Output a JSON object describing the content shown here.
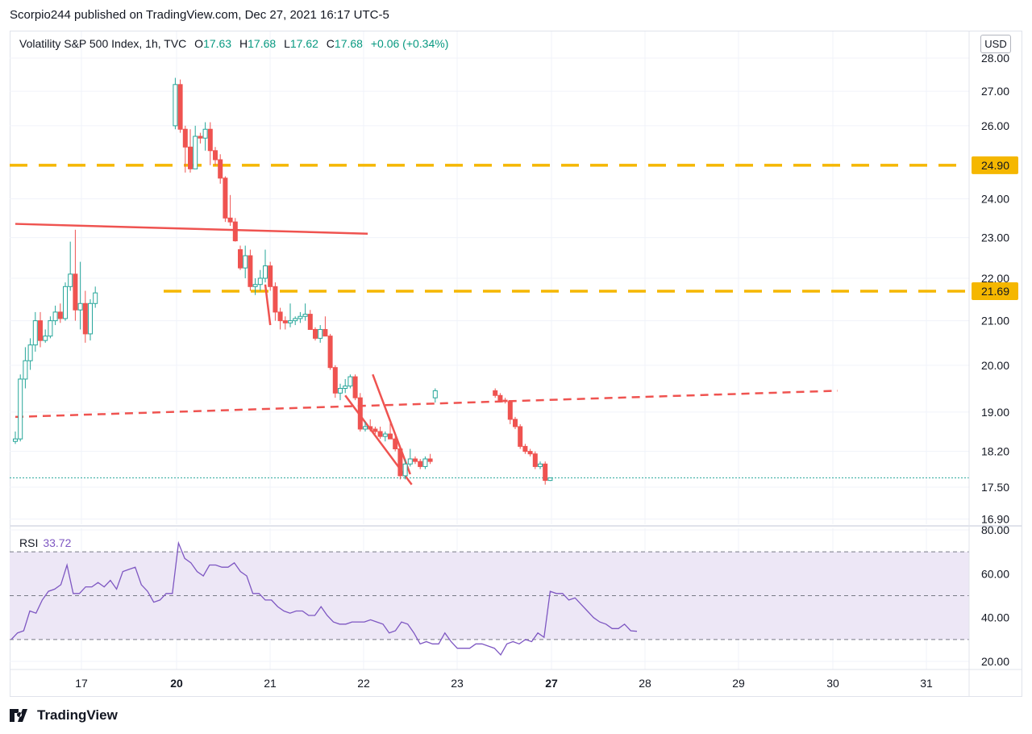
{
  "header": {
    "published": "Scorpio244 published on TradingView.com, Dec 27, 2021 16:17 UTC-5"
  },
  "legend": {
    "title": "Volatility S&P 500 Index, 1h, TVC",
    "o_label": "O",
    "o_value": "17.63",
    "h_label": "H",
    "h_value": "17.68",
    "l_label": "L",
    "l_value": "17.62",
    "c_label": "C",
    "c_value": "17.68",
    "change": "+0.06 (+0.34%)"
  },
  "currency_button": "USD",
  "rsi_label": {
    "name": "RSI",
    "value": "33.72"
  },
  "logo_text": "TradingView",
  "colors": {
    "up": "#26a69a",
    "down": "#ef5350",
    "level": "#f5b700",
    "rsi": "#7e57c2",
    "rsi_band": "#ede7f6",
    "grid": "#f0f3fa",
    "last_price": "#26a69a"
  },
  "chart_data": [
    {
      "type": "candlestick",
      "title": "Volatility S&P 500 Index, 1h, TVC",
      "price_axis_ticks": [
        "28.00",
        "27.00",
        "26.00",
        "24.00",
        "23.00",
        "22.00",
        "21.00",
        "20.00",
        "19.00",
        "18.20",
        "17.50",
        "16.90"
      ],
      "log_scale": true,
      "time_axis_ticks": [
        "17",
        "20",
        "21",
        "22",
        "23",
        "27",
        "28",
        "29",
        "30",
        "31"
      ],
      "bold_time_ticks": [
        "20",
        "27"
      ],
      "grid": true,
      "level_labels": [
        {
          "value": 24.9,
          "label": "24.90"
        },
        {
          "value": 21.69,
          "label": "21.69"
        }
      ],
      "last_price": 17.68,
      "trendlines": [
        {
          "style": "solid",
          "points": [
            [
              0.0,
              23.35
            ],
            [
              70.5,
              23.1
            ]
          ]
        },
        {
          "style": "dashed",
          "points": [
            [
              0.0,
              18.9
            ],
            [
              164.5,
              19.45
            ]
          ]
        },
        {
          "style": "solid",
          "points": [
            [
              50.0,
              21.85
            ],
            [
              51.0,
              20.9
            ]
          ]
        },
        {
          "style": "solid",
          "points": [
            [
              66.0,
              19.35
            ],
            [
              79.3,
              17.55
            ]
          ]
        },
        {
          "style": "solid",
          "points": [
            [
              71.5,
              19.8
            ],
            [
              79.0,
              17.75
            ]
          ]
        }
      ],
      "candles": [
        [
          18.4,
          18.6,
          18.35,
          18.45
        ],
        [
          18.45,
          19.8,
          18.4,
          19.7
        ],
        [
          19.7,
          20.4,
          19.5,
          20.1
        ],
        [
          20.1,
          20.6,
          19.9,
          20.45
        ],
        [
          20.45,
          21.2,
          20.3,
          21.0
        ],
        [
          21.0,
          21.2,
          20.4,
          20.55
        ],
        [
          20.55,
          20.8,
          20.5,
          20.65
        ],
        [
          20.65,
          21.1,
          20.6,
          21.0
        ],
        [
          21.0,
          21.35,
          20.9,
          21.2
        ],
        [
          21.2,
          21.4,
          20.95,
          21.05
        ],
        [
          21.05,
          21.9,
          21.0,
          21.8
        ],
        [
          21.8,
          22.9,
          21.7,
          22.1
        ],
        [
          22.1,
          23.2,
          21.0,
          21.25
        ],
        [
          21.25,
          22.4,
          20.8,
          21.4
        ],
        [
          21.4,
          21.7,
          20.5,
          20.7
        ],
        [
          20.7,
          21.5,
          20.55,
          21.4
        ],
        [
          21.4,
          21.8,
          21.3,
          21.65
        ],
        [
          26.0,
          27.4,
          25.9,
          27.2
        ],
        [
          27.2,
          27.35,
          25.8,
          25.9
        ],
        [
          25.9,
          26.0,
          24.7,
          25.4
        ],
        [
          25.4,
          25.9,
          24.7,
          24.8
        ],
        [
          24.8,
          26.0,
          24.8,
          25.7
        ],
        [
          25.7,
          25.8,
          25.5,
          25.65
        ],
        [
          25.65,
          26.1,
          25.3,
          25.9
        ],
        [
          25.9,
          26.1,
          24.9,
          25.3
        ],
        [
          25.3,
          25.4,
          24.9,
          25.05
        ],
        [
          25.05,
          25.2,
          24.4,
          24.55
        ],
        [
          24.55,
          24.6,
          23.4,
          23.5
        ],
        [
          23.5,
          24.1,
          23.3,
          23.4
        ],
        [
          23.4,
          23.5,
          22.9,
          22.92
        ],
        [
          22.7,
          22.8,
          22.2,
          22.25
        ],
        [
          22.25,
          22.8,
          22.0,
          22.55
        ],
        [
          22.55,
          22.7,
          21.7,
          21.8
        ],
        [
          21.8,
          22.0,
          21.6,
          21.85
        ],
        [
          21.85,
          22.2,
          21.7,
          22.0
        ],
        [
          22.0,
          22.7,
          21.9,
          22.3
        ],
        [
          22.3,
          22.4,
          21.7,
          21.8
        ],
        [
          21.8,
          21.9,
          21.0,
          21.2
        ],
        [
          21.2,
          21.3,
          20.8,
          21.0
        ],
        [
          21.0,
          21.1,
          20.8,
          20.95
        ],
        [
          20.95,
          21.4,
          20.85,
          21.0
        ],
        [
          21.0,
          21.1,
          20.9,
          21.05
        ],
        [
          21.05,
          21.2,
          20.95,
          21.1
        ],
        [
          21.1,
          21.4,
          21.0,
          21.15
        ],
        [
          21.15,
          21.25,
          20.8,
          20.8
        ],
        [
          20.8,
          20.85,
          20.55,
          20.6
        ],
        [
          20.6,
          20.9,
          20.5,
          20.8
        ],
        [
          20.8,
          21.1,
          20.7,
          20.65
        ],
        [
          20.65,
          20.7,
          19.9,
          19.95
        ],
        [
          19.95,
          20.0,
          19.3,
          19.4
        ],
        [
          19.4,
          19.6,
          19.25,
          19.5
        ],
        [
          19.5,
          19.7,
          19.4,
          19.55
        ],
        [
          19.55,
          19.8,
          19.5,
          19.75
        ],
        [
          19.75,
          19.8,
          19.25,
          19.3
        ],
        [
          19.3,
          19.4,
          18.6,
          18.65
        ],
        [
          18.65,
          18.8,
          18.6,
          18.7
        ],
        [
          18.7,
          18.85,
          18.6,
          18.65
        ],
        [
          18.65,
          18.7,
          18.55,
          18.6
        ],
        [
          18.6,
          18.7,
          18.45,
          18.5
        ],
        [
          18.5,
          18.6,
          18.4,
          18.55
        ],
        [
          18.55,
          18.8,
          18.5,
          18.45
        ],
        [
          18.45,
          18.5,
          18.2,
          18.25
        ],
        [
          18.25,
          18.3,
          17.65,
          17.72
        ],
        [
          17.72,
          18.05,
          17.65,
          17.95
        ],
        [
          17.95,
          18.25,
          17.9,
          18.05
        ],
        [
          18.05,
          18.1,
          17.95,
          18.0
        ],
        [
          18.0,
          18.05,
          17.85,
          17.9
        ],
        [
          17.9,
          18.1,
          17.85,
          18.05
        ],
        [
          18.05,
          18.15,
          17.95,
          18.0
        ],
        [
          19.3,
          19.5,
          19.2,
          19.45
        ],
        [
          19.45,
          19.5,
          19.3,
          19.35
        ],
        [
          19.35,
          19.4,
          19.2,
          19.25
        ],
        [
          19.25,
          19.3,
          19.18,
          19.22
        ],
        [
          19.22,
          19.25,
          18.75,
          18.85
        ],
        [
          18.85,
          18.9,
          18.65,
          18.7
        ],
        [
          18.7,
          18.75,
          18.25,
          18.3
        ],
        [
          18.3,
          18.35,
          18.15,
          18.2
        ],
        [
          18.2,
          18.25,
          18.1,
          18.15
        ],
        [
          18.15,
          18.2,
          17.85,
          17.9
        ],
        [
          17.9,
          18.0,
          17.85,
          17.95
        ],
        [
          17.95,
          18.0,
          17.55,
          17.63
        ],
        [
          17.63,
          17.68,
          17.62,
          17.68
        ]
      ]
    },
    {
      "type": "line",
      "title": "RSI",
      "current_value": 33.72,
      "y_axis_ticks": [
        "80.00",
        "60.00",
        "40.00",
        "20.00"
      ],
      "bands": [
        30,
        50,
        70
      ],
      "series": [
        {
          "values": [
            30,
            33,
            34,
            43,
            42,
            48,
            52,
            53,
            55,
            64,
            51,
            51,
            54,
            54,
            56,
            54,
            57,
            53,
            61,
            62,
            63,
            55,
            52,
            47,
            48,
            51,
            51,
            74,
            67,
            65,
            61,
            59,
            64,
            64,
            63,
            63,
            65,
            61,
            59,
            51,
            51,
            48,
            48,
            45,
            43,
            42,
            43,
            43,
            41,
            41,
            45,
            41,
            38,
            37,
            37,
            38,
            38,
            38,
            39,
            38,
            37,
            33,
            34,
            38,
            37,
            33,
            28,
            29,
            28,
            28,
            33,
            29,
            26,
            26,
            26,
            28,
            28,
            27,
            26,
            23,
            28,
            29,
            28,
            30,
            29,
            33,
            31,
            52,
            51,
            51,
            48,
            49,
            46,
            43,
            40,
            38,
            37,
            35,
            35,
            37,
            34,
            33.72
          ]
        }
      ]
    }
  ]
}
